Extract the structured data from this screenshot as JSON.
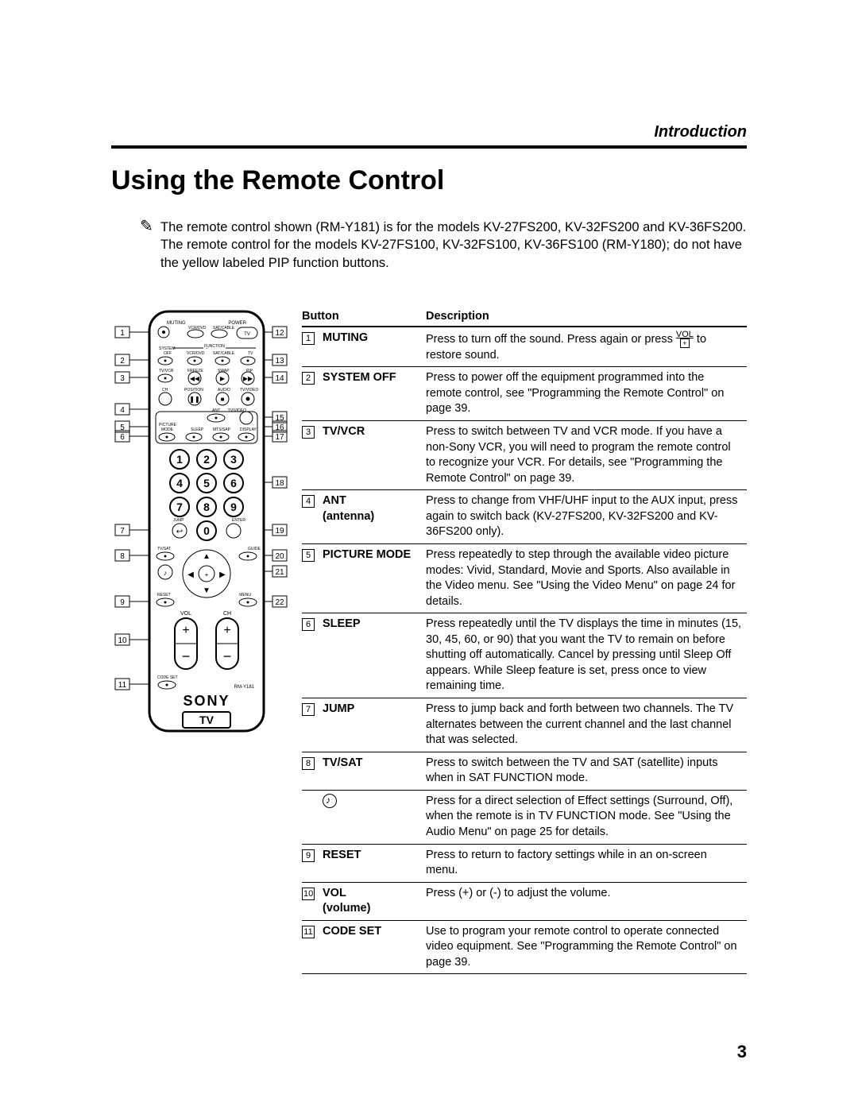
{
  "section_label": "Introduction",
  "title": "Using the Remote Control",
  "note": "The remote control shown (RM-Y181) is for the models KV-27FS200, KV-32FS200 and KV-36FS200. The remote control for the models KV-27FS100, KV-32FS100, KV-36FS100 (RM-Y180); do not have the yellow labeled PIP function buttons.",
  "table_headers": {
    "button": "Button",
    "description": "Description"
  },
  "rows": [
    {
      "num": "1",
      "button": "MUTING",
      "desc_pre": "Press to turn off the sound. Press again or press ",
      "desc_post": " to restore sound."
    },
    {
      "num": "2",
      "button": "SYSTEM OFF",
      "desc": "Press to power off the equipment programmed into the remote control, see \"Programming the Remote Control\" on page 39."
    },
    {
      "num": "3",
      "button": "TV/VCR",
      "desc": "Press to switch between TV and VCR mode. If you have a non-Sony VCR, you will need to program the remote control to recognize your VCR. For details, see \"Programming the Remote Control\" on page 39."
    },
    {
      "num": "4",
      "button": "ANT (antenna)",
      "desc": "Press to change from VHF/UHF input to the AUX input, press again to switch back (KV-27FS200, KV-32FS200 and KV-36FS200 only)."
    },
    {
      "num": "5",
      "button": "PICTURE MODE",
      "desc": "Press repeatedly to step through the available video picture modes: Vivid, Standard, Movie and Sports. Also available in the Video menu. See \"Using the Video Menu\" on page 24 for details."
    },
    {
      "num": "6",
      "button": "SLEEP",
      "desc": "Press repeatedly until the TV displays the time in minutes (15, 30, 45, 60, or 90) that you want the TV to remain on before shutting off automatically. Cancel by pressing until Sleep Off appears. While Sleep feature is set, press once to view remaining time."
    },
    {
      "num": "7",
      "button": "JUMP",
      "desc": "Press to jump back and forth between two channels. The TV alternates between the current channel and the last channel that was selected."
    },
    {
      "num": "8",
      "button": "TV/SAT",
      "desc": "Press to switch between the TV and SAT (satellite) inputs when in SAT FUNCTION mode."
    },
    {
      "num": "",
      "button": "",
      "icon": "audio",
      "desc": "Press for a direct selection of Effect settings (Surround, Off), when the remote is in TV FUNCTION mode. See \"Using the Audio Menu\" on page 25 for details."
    },
    {
      "num": "9",
      "button": "RESET",
      "desc": "Press to return to factory settings while in an on-screen menu."
    },
    {
      "num": "10",
      "button": "VOL (volume)",
      "desc": "Press (+) or (-) to adjust the volume."
    },
    {
      "num": "11",
      "button": "CODE SET",
      "desc": "Use to program your remote control to operate connected video equipment. See \"Programming the Remote Control\" on page 39."
    }
  ],
  "remote_labels": {
    "brand": "SONY",
    "product": "TV",
    "model": "RM-Y181",
    "muting": "MUTING",
    "power": "POWER",
    "vcrdvd": "VCR/DVD",
    "satcable": "SAT/CABLE",
    "tv": "TV",
    "system_off": "SYSTEM\nOFF",
    "function": "FUNCTION",
    "tvvcr": "TV/VCR",
    "freeze": "FREEZE",
    "swap": "SWAP",
    "pip": "PIP",
    "ch": "CH",
    "position": "POSITION",
    "audio": "AUDIO",
    "tvvideo": "TV/VIDEO",
    "ant": "ANT",
    "picture_mode": "PICTURE\nMODE",
    "sleep": "SLEEP",
    "mtssap": "MTS/SAP",
    "display": "DISPLAY",
    "jump": "JUMP",
    "enter": "ENTER",
    "tvsat": "TV/SAT",
    "guide": "GUIDE",
    "reset": "RESET",
    "menu": "MENU",
    "vol": "VOL",
    "ch2": "CH",
    "codeset": "CODE SET"
  },
  "callouts_left": [
    "1",
    "2",
    "3",
    "4",
    "5",
    "6",
    "7",
    "8",
    "9",
    "10",
    "11"
  ],
  "callouts_right": [
    "12",
    "13",
    "14",
    "15",
    "16",
    "17",
    "18",
    "19",
    "20",
    "21",
    "22"
  ],
  "page_number": "3",
  "colors": {
    "text": "#000000",
    "rule": "#000000",
    "bg": "#ffffff"
  }
}
